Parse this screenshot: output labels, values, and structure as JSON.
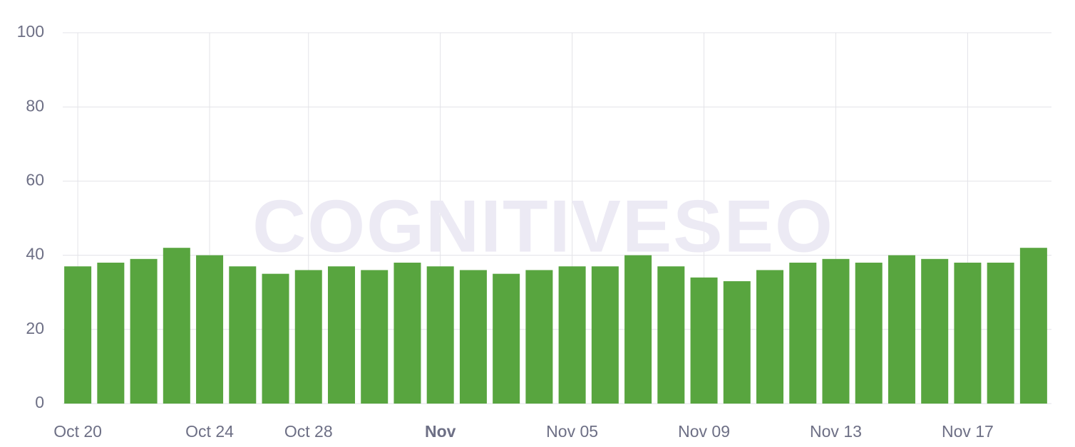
{
  "chart_data": {
    "type": "bar",
    "watermark": "COGNITIVESEO",
    "categories": [
      "Oct 20",
      null,
      null,
      null,
      "Oct 24",
      null,
      null,
      "Oct 28",
      null,
      null,
      null,
      "Nov",
      null,
      null,
      null,
      "Nov 05",
      null,
      null,
      null,
      "Nov 09",
      null,
      null,
      null,
      "Nov 13",
      null,
      null,
      null,
      "Nov 17",
      null,
      null
    ],
    "values": [
      37,
      38,
      39,
      42,
      40,
      37,
      35,
      36,
      37,
      36,
      38,
      37,
      36,
      35,
      36,
      37,
      37,
      40,
      37,
      34,
      33,
      36,
      38,
      39,
      38,
      40,
      39,
      38,
      38,
      42
    ],
    "color": "#58a53f",
    "ylim": [
      0,
      100
    ],
    "yticks": [
      0,
      20,
      40,
      60,
      80,
      100
    ],
    "grid": true
  }
}
